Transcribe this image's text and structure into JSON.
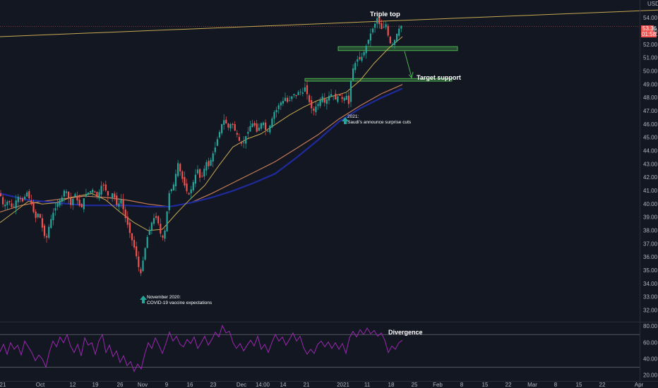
{
  "chart_data": {
    "type": "candlestick",
    "currency_label": "USD",
    "price_panel": {
      "ylim": [
        31.2,
        55.2
      ],
      "y_ticks": [
        "32.00",
        "33.00",
        "34.00",
        "35.00",
        "36.00",
        "37.00",
        "38.00",
        "39.00",
        "40.00",
        "41.00",
        "42.00",
        "43.00",
        "44.00",
        "45.00",
        "46.00",
        "47.00",
        "48.00",
        "49.00",
        "50.00",
        "51.00",
        "52.00",
        "53.00",
        "54.00"
      ],
      "last_price_label": "53.36",
      "countdown_label": "01:58:15",
      "last_price": 53.36,
      "price_path": [
        [
          0,
          40.8
        ],
        [
          5,
          39.8
        ],
        [
          12,
          40.3
        ],
        [
          18,
          39.6
        ],
        [
          25,
          40.6
        ],
        [
          32,
          40.2
        ],
        [
          38,
          40.9
        ],
        [
          45,
          39.9
        ],
        [
          50,
          38.9
        ],
        [
          55,
          39.4
        ],
        [
          60,
          38.2
        ],
        [
          65,
          37.2
        ],
        [
          70,
          38.5
        ],
        [
          75,
          39.3
        ],
        [
          82,
          40.1
        ],
        [
          88,
          40.5
        ],
        [
          92,
          41.2
        ],
        [
          96,
          40.7
        ],
        [
          100,
          39.9
        ],
        [
          106,
          40.8
        ],
        [
          110,
          40.2
        ],
        [
          115,
          39.6
        ],
        [
          120,
          40.7
        ],
        [
          126,
          40.9
        ],
        [
          132,
          41.1
        ],
        [
          138,
          40.5
        ],
        [
          145,
          41.6
        ],
        [
          150,
          41.0
        ],
        [
          155,
          40.4
        ],
        [
          160,
          40.9
        ],
        [
          166,
          39.8
        ],
        [
          172,
          40.4
        ],
        [
          176,
          39.2
        ],
        [
          180,
          38.6
        ],
        [
          184,
          37.8
        ],
        [
          188,
          37.1
        ],
        [
          192,
          36.4
        ],
        [
          196,
          35.3
        ],
        [
          200,
          34.7
        ],
        [
          202,
          35.6
        ],
        [
          205,
          36.5
        ],
        [
          208,
          37.4
        ],
        [
          212,
          38.1
        ],
        [
          216,
          38.8
        ],
        [
          220,
          39.1
        ],
        [
          224,
          38.6
        ],
        [
          228,
          37.6
        ],
        [
          232,
          37.4
        ],
        [
          235,
          38.6
        ],
        [
          238,
          40.2
        ],
        [
          241,
          41.3
        ],
        [
          244,
          41.0
        ],
        [
          248,
          42.0
        ],
        [
          252,
          43.1
        ],
        [
          256,
          42.3
        ],
        [
          260,
          41.6
        ],
        [
          264,
          41.0
        ],
        [
          268,
          40.7
        ],
        [
          272,
          41.3
        ],
        [
          276,
          42.1
        ],
        [
          280,
          42.6
        ],
        [
          284,
          41.8
        ],
        [
          288,
          42.4
        ],
        [
          292,
          43.2
        ],
        [
          296,
          42.8
        ],
        [
          300,
          43.6
        ],
        [
          304,
          44.1
        ],
        [
          308,
          44.9
        ],
        [
          312,
          45.6
        ],
        [
          316,
          46.4
        ],
        [
          320,
          46.1
        ],
        [
          324,
          45.7
        ],
        [
          328,
          46.2
        ],
        [
          332,
          45.6
        ],
        [
          336,
          45.2
        ],
        [
          340,
          44.6
        ],
        [
          344,
          44.5
        ],
        [
          348,
          45.1
        ],
        [
          352,
          45.5
        ],
        [
          356,
          46.1
        ],
        [
          360,
          46.0
        ],
        [
          364,
          45.4
        ],
        [
          368,
          45.9
        ],
        [
          372,
          46.3
        ],
        [
          376,
          45.6
        ],
        [
          380,
          45.5
        ],
        [
          384,
          46.2
        ],
        [
          388,
          46.9
        ],
        [
          392,
          47.1
        ],
        [
          396,
          47.6
        ],
        [
          400,
          47.7
        ],
        [
          404,
          48.0
        ],
        [
          408,
          47.6
        ],
        [
          412,
          48.0
        ],
        [
          416,
          48.3
        ],
        [
          420,
          48.1
        ],
        [
          424,
          48.6
        ],
        [
          428,
          48.3
        ],
        [
          432,
          48.8
        ],
        [
          436,
          48.1
        ],
        [
          440,
          47.3
        ],
        [
          444,
          47.0
        ],
        [
          448,
          47.4
        ],
        [
          452,
          47.6
        ],
        [
          456,
          48.2
        ],
        [
          460,
          47.6
        ],
        [
          464,
          48.0
        ],
        [
          468,
          48.3
        ],
        [
          472,
          48.2
        ],
        [
          476,
          47.8
        ],
        [
          480,
          48.3
        ],
        [
          484,
          47.9
        ],
        [
          488,
          48.0
        ],
        [
          492,
          48.2
        ],
        [
          494,
          47.5
        ],
        [
          496,
          48.6
        ],
        [
          498,
          49.9
        ],
        [
          502,
          50.5
        ],
        [
          506,
          50.9
        ],
        [
          510,
          50.9
        ],
        [
          514,
          51.2
        ],
        [
          518,
          51.8
        ],
        [
          522,
          52.4
        ],
        [
          526,
          53.0
        ],
        [
          530,
          53.4
        ],
        [
          534,
          54.0
        ],
        [
          536,
          54.0
        ],
        [
          538,
          53.3
        ],
        [
          542,
          53.1
        ],
        [
          546,
          53.7
        ],
        [
          550,
          52.6
        ],
        [
          554,
          51.9
        ],
        [
          558,
          52.2
        ],
        [
          562,
          52.8
        ],
        [
          566,
          53.3
        ],
        [
          570,
          53.5
        ]
      ],
      "ma_orange": [
        [
          0,
          39.4
        ],
        [
          30,
          39.9
        ],
        [
          60,
          40.2
        ],
        [
          90,
          40.4
        ],
        [
          120,
          40.6
        ],
        [
          150,
          40.5
        ],
        [
          180,
          40.3
        ],
        [
          210,
          40.0
        ],
        [
          240,
          39.8
        ],
        [
          270,
          40.1
        ],
        [
          300,
          40.8
        ],
        [
          330,
          41.6
        ],
        [
          360,
          42.4
        ],
        [
          390,
          43.2
        ],
        [
          420,
          44.2
        ],
        [
          450,
          45.2
        ],
        [
          480,
          46.4
        ],
        [
          510,
          47.4
        ],
        [
          540,
          48.3
        ],
        [
          570,
          49.0
        ]
      ],
      "ma_navy": [
        [
          0,
          40.8
        ],
        [
          40,
          40.3
        ],
        [
          80,
          40.1
        ],
        [
          120,
          39.9
        ],
        [
          150,
          39.9
        ],
        [
          180,
          39.9
        ],
        [
          210,
          39.8
        ],
        [
          240,
          39.8
        ],
        [
          270,
          40.1
        ],
        [
          300,
          40.5
        ],
        [
          330,
          41.0
        ],
        [
          360,
          41.6
        ],
        [
          390,
          42.3
        ],
        [
          420,
          43.5
        ],
        [
          450,
          44.8
        ],
        [
          480,
          46.2
        ],
        [
          510,
          47.2
        ],
        [
          540,
          48.0
        ],
        [
          570,
          48.7
        ]
      ],
      "ma_yellow": [
        [
          0,
          38.6
        ],
        [
          20,
          39.4
        ],
        [
          40,
          40.2
        ],
        [
          60,
          40.0
        ],
        [
          80,
          40.1
        ],
        [
          100,
          40.5
        ],
        [
          130,
          40.8
        ],
        [
          150,
          40.3
        ],
        [
          170,
          39.4
        ],
        [
          190,
          38.6
        ],
        [
          210,
          38.0
        ],
        [
          230,
          38.1
        ],
        [
          250,
          39.3
        ],
        [
          270,
          40.4
        ],
        [
          290,
          41.4
        ],
        [
          310,
          42.9
        ],
        [
          330,
          44.3
        ],
        [
          350,
          44.9
        ],
        [
          370,
          45.3
        ],
        [
          390,
          46.0
        ],
        [
          410,
          46.7
        ],
        [
          430,
          47.3
        ],
        [
          450,
          47.8
        ],
        [
          470,
          48.1
        ],
        [
          490,
          48.4
        ],
        [
          510,
          49.3
        ],
        [
          530,
          50.6
        ],
        [
          550,
          51.7
        ],
        [
          570,
          52.6
        ]
      ],
      "trendline": [
        [
          0,
          52.6
        ],
        [
          932,
          54.6
        ]
      ]
    },
    "rsi_panel": {
      "ylim": [
        15,
        84
      ],
      "y_ticks": [
        "80.00",
        "60.00",
        "40.00",
        "20.00"
      ],
      "upper_band": 70,
      "lower_band": 30,
      "rsi_path": [
        [
          0,
          49
        ],
        [
          5,
          58
        ],
        [
          10,
          46
        ],
        [
          15,
          60
        ],
        [
          20,
          52
        ],
        [
          25,
          57
        ],
        [
          30,
          45
        ],
        [
          35,
          62
        ],
        [
          40,
          55
        ],
        [
          45,
          48
        ],
        [
          50,
          38
        ],
        [
          55,
          45
        ],
        [
          60,
          40
        ],
        [
          65,
          30
        ],
        [
          70,
          49
        ],
        [
          75,
          62
        ],
        [
          80,
          55
        ],
        [
          85,
          67
        ],
        [
          90,
          60
        ],
        [
          95,
          70
        ],
        [
          100,
          56
        ],
        [
          105,
          48
        ],
        [
          110,
          58
        ],
        [
          115,
          44
        ],
        [
          120,
          66
        ],
        [
          125,
          57
        ],
        [
          130,
          60
        ],
        [
          135,
          46
        ],
        [
          140,
          62
        ],
        [
          145,
          70
        ],
        [
          150,
          48
        ],
        [
          155,
          57
        ],
        [
          160,
          43
        ],
        [
          165,
          50
        ],
        [
          170,
          36
        ],
        [
          175,
          44
        ],
        [
          180,
          32
        ],
        [
          185,
          37
        ],
        [
          190,
          25
        ],
        [
          195,
          34
        ],
        [
          200,
          28
        ],
        [
          205,
          46
        ],
        [
          210,
          60
        ],
        [
          215,
          53
        ],
        [
          220,
          66
        ],
        [
          225,
          57
        ],
        [
          230,
          47
        ],
        [
          235,
          59
        ],
        [
          240,
          73
        ],
        [
          245,
          62
        ],
        [
          250,
          68
        ],
        [
          255,
          58
        ],
        [
          260,
          55
        ],
        [
          265,
          64
        ],
        [
          270,
          59
        ],
        [
          275,
          67
        ],
        [
          280,
          53
        ],
        [
          285,
          60
        ],
        [
          290,
          68
        ],
        [
          295,
          57
        ],
        [
          300,
          64
        ],
        [
          305,
          73
        ],
        [
          310,
          67
        ],
        [
          315,
          81
        ],
        [
          320,
          72
        ],
        [
          325,
          74
        ],
        [
          330,
          60
        ],
        [
          335,
          53
        ],
        [
          340,
          59
        ],
        [
          345,
          50
        ],
        [
          350,
          57
        ],
        [
          355,
          63
        ],
        [
          360,
          56
        ],
        [
          365,
          68
        ],
        [
          370,
          52
        ],
        [
          375,
          58
        ],
        [
          380,
          48
        ],
        [
          385,
          60
        ],
        [
          390,
          70
        ],
        [
          395,
          62
        ],
        [
          400,
          67
        ],
        [
          405,
          57
        ],
        [
          410,
          64
        ],
        [
          415,
          72
        ],
        [
          420,
          62
        ],
        [
          425,
          68
        ],
        [
          430,
          54
        ],
        [
          435,
          46
        ],
        [
          440,
          52
        ],
        [
          445,
          47
        ],
        [
          450,
          58
        ],
        [
          455,
          62
        ],
        [
          460,
          55
        ],
        [
          465,
          61
        ],
        [
          470,
          53
        ],
        [
          475,
          60
        ],
        [
          480,
          52
        ],
        [
          485,
          59
        ],
        [
          490,
          47
        ],
        [
          495,
          66
        ],
        [
          500,
          74
        ],
        [
          505,
          67
        ],
        [
          510,
          76
        ],
        [
          515,
          70
        ],
        [
          520,
          78
        ],
        [
          525,
          71
        ],
        [
          530,
          75
        ],
        [
          535,
          68
        ],
        [
          540,
          72
        ],
        [
          545,
          63
        ],
        [
          550,
          48
        ],
        [
          555,
          56
        ],
        [
          560,
          52
        ],
        [
          565,
          60
        ],
        [
          570,
          63
        ]
      ]
    },
    "x_axis": {
      "tick_labels": [
        "21",
        "Oct",
        "12",
        "19",
        "26",
        "Nov",
        "9",
        "16",
        "23",
        "Dec",
        "14:00",
        "14",
        "21",
        "2021",
        "11",
        "18",
        "25",
        "Feb",
        "8",
        "15",
        "22",
        "Mar",
        "8",
        "15",
        "22",
        "Apr"
      ],
      "tick_positions_x": [
        4,
        57,
        103,
        135,
        170,
        202,
        236,
        269,
        302,
        342,
        372,
        401,
        434,
        486,
        520,
        554,
        587,
        620,
        654,
        687,
        720,
        754,
        787,
        820,
        853,
        905
      ]
    },
    "annotations": {
      "triple_top": "Triple top",
      "target_support": "Target support",
      "divergence": "Divergence",
      "note_2021_title": "2021:",
      "note_2021_text": "Saudi's announce surprise cuts",
      "note_nov_title": "November 2020:",
      "note_nov_text": "COVID-19 vaccine expectations"
    },
    "colors": {
      "background": "#131722",
      "up": "#26a69a",
      "down": "#ef5350",
      "ma_orange": "#c57b57",
      "ma_navy": "#1f2a9b",
      "ma_yellow": "#c8a951",
      "trendline": "#c8a951",
      "support_zone": "#4caf50",
      "rsi": "#9c27b0",
      "arrow": "#4caf50",
      "last_price_bg": "#ef5350"
    }
  }
}
